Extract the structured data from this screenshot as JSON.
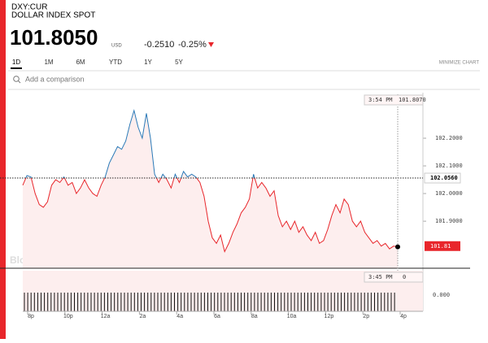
{
  "header": {
    "ticker": "DXY:CUR",
    "name": "DOLLAR INDEX SPOT",
    "price": "101.8050",
    "currency": "USD",
    "change": "-0.2510",
    "change_pct": "-0.25%"
  },
  "tabs": [
    "1D",
    "1M",
    "6M",
    "YTD",
    "1Y",
    "5Y"
  ],
  "minimize": "MINIMIZE CHART",
  "search_placeholder": "Add a comparison",
  "chart_data": {
    "type": "line",
    "watermark": "BloombergMarkets",
    "series": [
      {
        "name": "DXY:CUR",
        "color": "#e8262b",
        "color_above": "#2a7ab8",
        "values": [
          102.03,
          102.065,
          102.06,
          102.0,
          101.96,
          101.95,
          101.97,
          102.03,
          102.05,
          102.04,
          102.06,
          102.03,
          102.04,
          102.0,
          102.02,
          102.05,
          102.02,
          102.0,
          101.99,
          102.03,
          102.06,
          102.11,
          102.14,
          102.17,
          102.16,
          102.19,
          102.25,
          102.3,
          102.24,
          102.2,
          102.29,
          102.2,
          102.07,
          102.04,
          102.07,
          102.05,
          102.02,
          102.07,
          102.04,
          102.08,
          102.06,
          102.07,
          102.06,
          102.04,
          101.99,
          101.9,
          101.84,
          101.82,
          101.85,
          101.79,
          101.82,
          101.86,
          101.89,
          101.93,
          101.95,
          101.98,
          102.07,
          102.02,
          102.04,
          102.02,
          101.99,
          102.01,
          101.92,
          101.88,
          101.9,
          101.87,
          101.9,
          101.86,
          101.88,
          101.85,
          101.83,
          101.86,
          101.82,
          101.83,
          101.87,
          101.92,
          101.96,
          101.93,
          101.98,
          101.96,
          101.9,
          101.88,
          101.9,
          101.86,
          101.84,
          101.82,
          101.83,
          101.81,
          101.82,
          101.8,
          101.81,
          101.807
        ]
      }
    ],
    "ylim": [
      101.73,
      102.35
    ],
    "yticks": [
      {
        "value": 101.9,
        "label": "101.9000"
      },
      {
        "value": 102.0,
        "label": "102.0000"
      },
      {
        "value": 102.1,
        "label": "102.1000"
      },
      {
        "value": 102.2,
        "label": "102.2000"
      }
    ],
    "xticks": [
      "8p",
      "10p",
      "12a",
      "2a",
      "4a",
      "6a",
      "8a",
      "10a",
      "12p",
      "2p",
      "4p"
    ],
    "prev_close": {
      "value": 102.056,
      "label": "102.0560"
    },
    "last_value": {
      "value": 101.81,
      "label": "101.81"
    },
    "cursor_time": "3:54 PM",
    "cursor_value": {
      "value": 101.807,
      "label": "101.8070"
    },
    "volume": {
      "time": "3:45 PM",
      "value": 0,
      "axis_label": {
        "value": 0,
        "label": "0.000"
      }
    }
  }
}
